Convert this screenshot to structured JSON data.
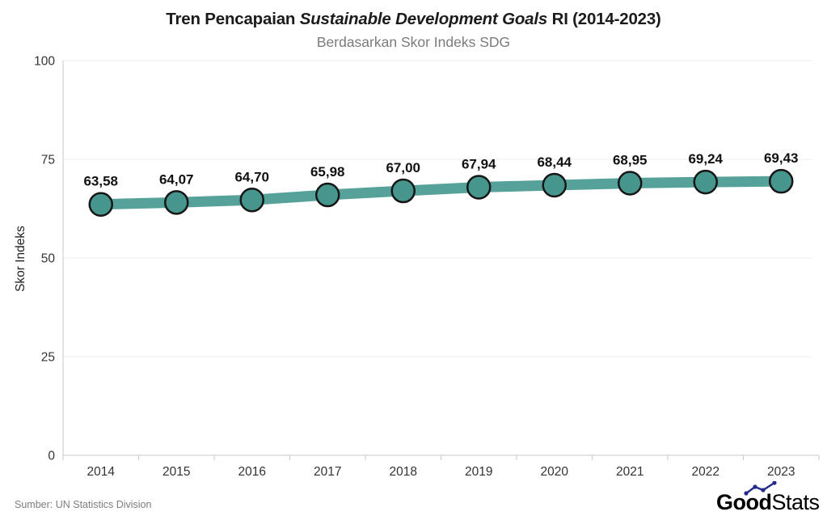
{
  "header": {
    "title_prefix": "Tren Pencapaian ",
    "title_italic": "Sustainable Development Goals",
    "title_suffix": " RI (2014-2023)",
    "subtitle": "Berdasarkan Skor Indeks SDG"
  },
  "chart_data": {
    "type": "line",
    "title": "Tren Pencapaian Sustainable Development Goals RI (2014-2023)",
    "subtitle": "Berdasarkan Skor Indeks SDG",
    "categories": [
      "2014",
      "2015",
      "2016",
      "2017",
      "2018",
      "2019",
      "2020",
      "2021",
      "2022",
      "2023"
    ],
    "values": [
      63.58,
      64.07,
      64.7,
      65.98,
      67.0,
      67.94,
      68.44,
      68.95,
      69.24,
      69.43
    ],
    "point_labels": [
      "63,58",
      "64,07",
      "64,70",
      "65,98",
      "67,00",
      "67,94",
      "68,44",
      "68,95",
      "69,24",
      "69,43"
    ],
    "xlabel": "",
    "ylabel": "Skor Indeks",
    "ylim": [
      0,
      100
    ],
    "yticks": [
      0,
      25,
      50,
      75,
      100
    ],
    "grid": true,
    "legend": false,
    "colors": {
      "line": "#56a29a",
      "marker_fill": "#46968e",
      "marker_stroke": "#161616",
      "gridline": "#ececec",
      "axis": "#c9c9c9",
      "tick_label": "#333333",
      "value_label": "#111111"
    }
  },
  "footer": {
    "source": "Sumber: UN Statistics Division",
    "logo_bold": "Good",
    "logo_light": "Stats",
    "logo_color": "#232a8c"
  }
}
